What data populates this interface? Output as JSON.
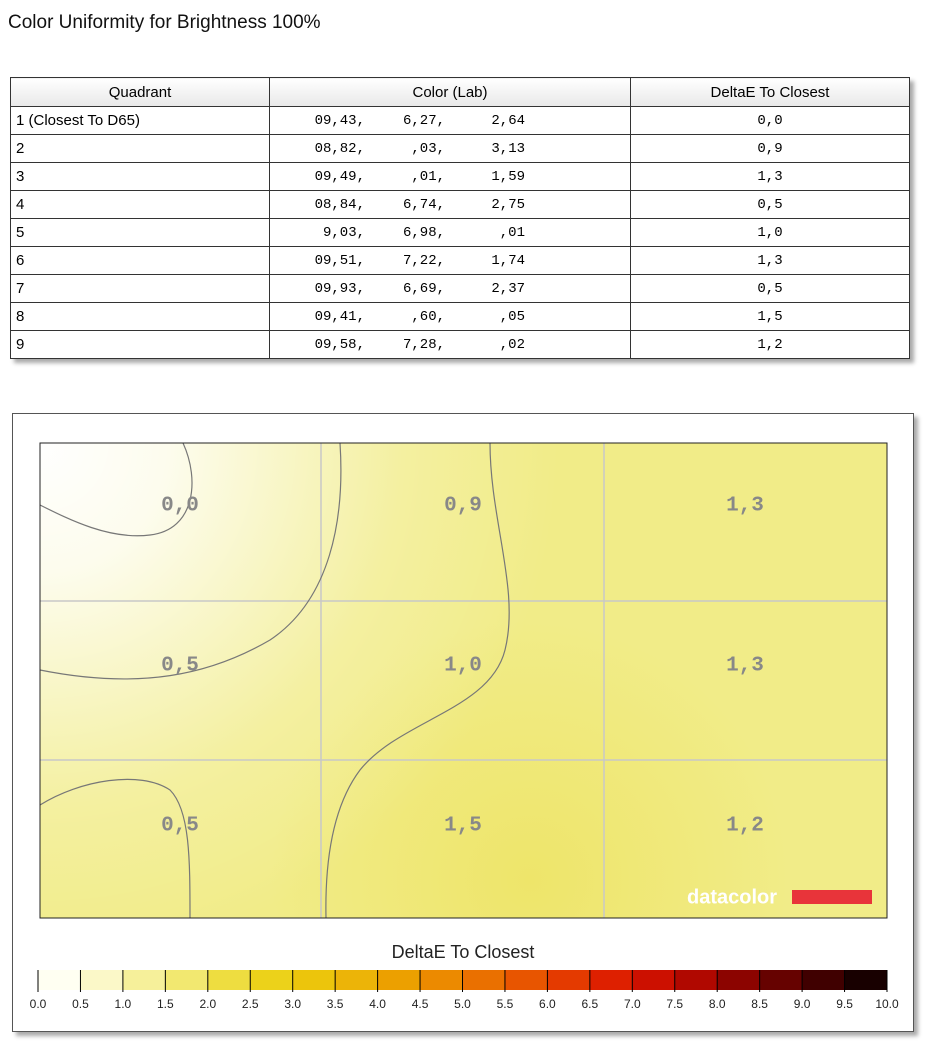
{
  "header": {
    "title": "Color Uniformity for Brightness 100%"
  },
  "table": {
    "columns": [
      "Quadrant",
      "Color (Lab)",
      "DeltaE To Closest"
    ],
    "rows": [
      [
        "1 (Closest To D65)",
        [
          "09,43,",
          "6,27,",
          "2,64"
        ],
        "0,0"
      ],
      [
        "2",
        [
          "08,82,",
          ",03,",
          "3,13"
        ],
        "0,9"
      ],
      [
        "3",
        [
          "09,49,",
          ",01,",
          "1,59"
        ],
        "1,3"
      ],
      [
        "4",
        [
          "08,84,",
          "6,74,",
          "2,75"
        ],
        "0,5"
      ],
      [
        "5",
        [
          "9,03,",
          "6,98,",
          ",01"
        ],
        "1,0"
      ],
      [
        "6",
        [
          "09,51,",
          "7,22,",
          "1,74"
        ],
        "1,3"
      ],
      [
        "7",
        [
          "09,93,",
          "6,69,",
          "2,37"
        ],
        "0,5"
      ],
      [
        "8",
        [
          "09,41,",
          ",60,",
          ",05"
        ],
        "1,5"
      ],
      [
        "9",
        [
          "09,58,",
          "7,28,",
          ",02"
        ],
        "1,2"
      ]
    ]
  },
  "heatmap": {
    "cells": [
      [
        "0,0",
        "0,9",
        "1,3"
      ],
      [
        "0,5",
        "1,0",
        "1,3"
      ],
      [
        "0,5",
        "1,5",
        "1,2"
      ]
    ],
    "logo": "datacolor",
    "legend_title": "DeltaE To Closest",
    "legend_labels": [
      "0.0",
      "0.5",
      "1.0",
      "1.5",
      "2.0",
      "2.5",
      "3.0",
      "3.5",
      "4.0",
      "4.5",
      "5.0",
      "5.5",
      "6.0",
      "6.5",
      "7.0",
      "7.5",
      "8.0",
      "8.5",
      "9.0",
      "9.5",
      "10.0"
    ]
  }
}
